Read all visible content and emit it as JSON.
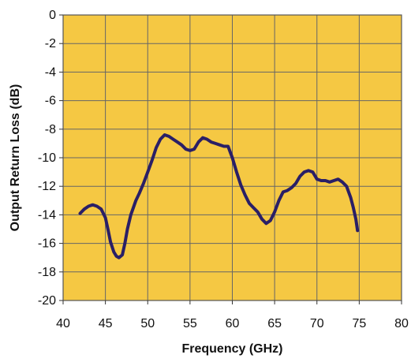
{
  "chart_data": {
    "type": "line",
    "title": "",
    "xlabel": "Frequency (GHz)",
    "ylabel": "Output Return Loss (dB)",
    "xlim": [
      40,
      80
    ],
    "ylim": [
      -20,
      0
    ],
    "x_ticks": [
      40,
      45,
      50,
      55,
      60,
      65,
      70,
      75,
      80
    ],
    "y_ticks": [
      0,
      -2,
      -4,
      -6,
      -8,
      -10,
      -12,
      -14,
      -16,
      -18,
      -20
    ],
    "x_tick_labels": [
      "40",
      "45",
      "50",
      "55",
      "60",
      "65",
      "70",
      "75",
      "80"
    ],
    "y_tick_labels": [
      "0",
      "-2",
      "-4",
      "-6",
      "-8",
      "-10",
      "-12",
      "-14",
      "-16",
      "-18",
      "-20"
    ],
    "grid": true,
    "legend": "none",
    "colors": {
      "plot_background": "#F5C843",
      "grid": "#666666",
      "line": "#2A1F66",
      "frame": "#555555"
    },
    "series": [
      {
        "x": [
          42.0,
          42.5,
          43.0,
          43.5,
          44.0,
          44.5,
          45.0,
          45.3,
          45.6,
          46.0,
          46.3,
          46.6,
          47.0,
          47.3,
          47.6,
          48.0,
          48.3,
          48.6,
          49.0,
          49.5,
          50.0,
          50.5,
          51.0,
          51.5,
          52.0,
          52.5,
          53.0,
          53.5,
          54.0,
          54.5,
          55.0,
          55.5,
          56.0,
          56.5,
          57.0,
          57.5,
          58.0,
          58.5,
          59.0,
          59.5,
          60.0,
          60.5,
          61.0,
          61.5,
          62.0,
          62.5,
          63.0,
          63.5,
          64.0,
          64.5,
          65.0,
          65.5,
          66.0,
          66.5,
          67.0,
          67.5,
          68.0,
          68.5,
          69.0,
          69.5,
          70.0,
          70.5,
          71.0,
          71.5,
          72.0,
          72.5,
          73.0,
          73.5,
          74.0,
          74.3,
          74.6,
          74.8
        ],
        "values": [
          -13.9,
          -13.6,
          -13.4,
          -13.3,
          -13.4,
          -13.6,
          -14.2,
          -15.0,
          -15.9,
          -16.6,
          -16.9,
          -17.0,
          -16.8,
          -16.0,
          -15.0,
          -14.0,
          -13.5,
          -13.0,
          -12.5,
          -11.8,
          -11.0,
          -10.2,
          -9.3,
          -8.7,
          -8.4,
          -8.5,
          -8.7,
          -8.9,
          -9.1,
          -9.4,
          -9.5,
          -9.4,
          -8.9,
          -8.6,
          -8.7,
          -8.9,
          -9.0,
          -9.1,
          -9.2,
          -9.2,
          -10.0,
          -11.0,
          -11.9,
          -12.6,
          -13.2,
          -13.5,
          -13.8,
          -14.3,
          -14.6,
          -14.4,
          -13.8,
          -13.0,
          -12.4,
          -12.3,
          -12.1,
          -11.8,
          -11.3,
          -11.0,
          -10.9,
          -11.0,
          -11.5,
          -11.6,
          -11.6,
          -11.7,
          -11.6,
          -11.5,
          -11.7,
          -12.0,
          -12.8,
          -13.5,
          -14.3,
          -15.1
        ]
      }
    ]
  }
}
